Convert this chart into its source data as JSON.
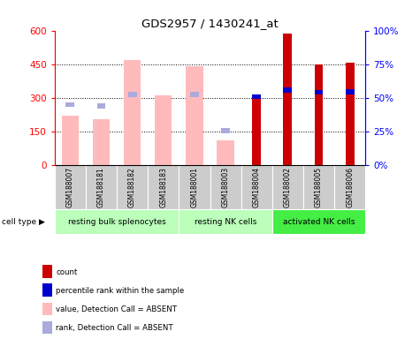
{
  "title": "GDS2957 / 1430241_at",
  "samples": [
    "GSM188007",
    "GSM188181",
    "GSM188182",
    "GSM188183",
    "GSM188001",
    "GSM188003",
    "GSM188004",
    "GSM188002",
    "GSM188005",
    "GSM188006"
  ],
  "groups": [
    {
      "label": "resting bulk splenocytes",
      "color": "#bbffbb",
      "start": 0,
      "end": 4
    },
    {
      "label": "resting NK cells",
      "color": "#bbffbb",
      "start": 4,
      "end": 7
    },
    {
      "label": "activated NK cells",
      "color": "#44ee44",
      "start": 7,
      "end": 10
    }
  ],
  "value_absent": [
    220,
    205,
    470,
    310,
    440,
    110,
    null,
    null,
    null,
    null
  ],
  "rank_absent": [
    270,
    265,
    315,
    null,
    315,
    155,
    null,
    null,
    null,
    null
  ],
  "count_present": [
    null,
    null,
    null,
    null,
    null,
    null,
    315,
    585,
    450,
    455
  ],
  "percentile_present": [
    null,
    null,
    null,
    null,
    null,
    null,
    305,
    335,
    325,
    328
  ],
  "ylim_left": [
    0,
    600
  ],
  "ylim_right": [
    0,
    100
  ],
  "yticks_left": [
    0,
    150,
    300,
    450,
    600
  ],
  "yticks_right": [
    0,
    25,
    50,
    75,
    100
  ],
  "ytick_labels_right": [
    "0%",
    "25%",
    "50%",
    "75%",
    "100%"
  ],
  "absent_bar_color": "#ffbbbb",
  "absent_rank_color": "#aaaadd",
  "present_bar_color": "#cc0000",
  "present_rank_color": "#0000cc",
  "sample_bg_color": "#cccccc",
  "legend_items": [
    {
      "color": "#cc0000",
      "label": "count"
    },
    {
      "color": "#0000cc",
      "label": "percentile rank within the sample"
    },
    {
      "color": "#ffbbbb",
      "label": "value, Detection Call = ABSENT"
    },
    {
      "color": "#aaaadd",
      "label": "rank, Detection Call = ABSENT"
    }
  ]
}
